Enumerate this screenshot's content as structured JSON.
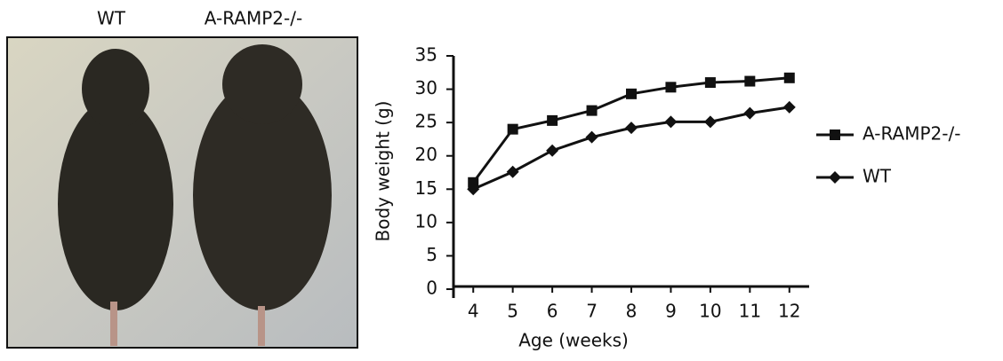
{
  "photo_labels": [
    "WT",
    "A-RAMP2-/-"
  ],
  "chart_data": {
    "type": "line",
    "x_label": "Age (weeks)",
    "y_label": "Body weight (g)",
    "x": [
      4,
      5,
      6,
      7,
      8,
      9,
      10,
      11,
      12
    ],
    "xlim": [
      3.5,
      12.5
    ],
    "xticks": [
      4,
      5,
      6,
      7,
      8,
      9,
      10,
      11,
      12
    ],
    "ylim": [
      0,
      35
    ],
    "yticks": [
      0,
      5,
      10,
      15,
      20,
      25,
      30,
      35
    ],
    "legend": "right",
    "series": [
      {
        "name": "A-RAMP2-/-",
        "color": "#111111",
        "marker": "square",
        "values": [
          16,
          24,
          25.3,
          26.8,
          29.3,
          30.3,
          31,
          31.2,
          31.7
        ]
      },
      {
        "name": "WT",
        "color": "#111111",
        "marker": "diamond",
        "values": [
          15,
          17.6,
          20.8,
          22.8,
          24.2,
          25.1,
          25.1,
          26.4,
          27.3
        ]
      }
    ]
  }
}
